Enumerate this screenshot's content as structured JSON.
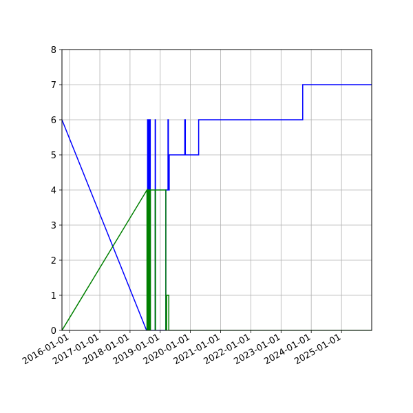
{
  "chart_data": {
    "type": "line",
    "title": "",
    "xlabel": "",
    "ylabel": "",
    "x_axis": {
      "scale": "date",
      "range": [
        "2015-10-01",
        "2026-01-01"
      ],
      "ticks": [
        "2016-01-01",
        "2017-01-01",
        "2018-01-01",
        "2019-01-01",
        "2020-01-01",
        "2021-01-01",
        "2022-01-01",
        "2023-01-01",
        "2024-01-01",
        "2025-01-01"
      ]
    },
    "y_axis": {
      "range": [
        0,
        8
      ],
      "ticks": [
        "0",
        "1",
        "2",
        "3",
        "4",
        "5",
        "6",
        "7",
        "8"
      ]
    },
    "grid": true,
    "legend": "none",
    "series": [
      {
        "color": "#0000ff",
        "points": [
          [
            "2015-10-01",
            6
          ],
          [
            "2018-07-20",
            0
          ],
          [
            "2018-08-01",
            0
          ],
          [
            "2018-08-01",
            6
          ],
          [
            "2018-08-08",
            6
          ],
          [
            "2018-08-08",
            0
          ],
          [
            "2018-08-12",
            0
          ],
          [
            "2018-08-12",
            6
          ],
          [
            "2018-08-20",
            6
          ],
          [
            "2018-08-20",
            0
          ],
          [
            "2018-08-26",
            0
          ],
          [
            "2018-08-26",
            6
          ],
          [
            "2018-09-03",
            6
          ],
          [
            "2018-09-03",
            0
          ],
          [
            "2018-11-01",
            0
          ],
          [
            "2018-11-01",
            6
          ],
          [
            "2018-11-05",
            6
          ],
          [
            "2018-11-05",
            0
          ],
          [
            "2019-03-10",
            0
          ],
          [
            "2019-03-10",
            4
          ],
          [
            "2019-04-05",
            4
          ],
          [
            "2019-04-05",
            6
          ],
          [
            "2019-04-10",
            6
          ],
          [
            "2019-04-10",
            4
          ],
          [
            "2019-04-20",
            4
          ],
          [
            "2019-04-20",
            5
          ],
          [
            "2019-10-25",
            5
          ],
          [
            "2019-10-25",
            6
          ],
          [
            "2019-11-01",
            6
          ],
          [
            "2019-11-01",
            5
          ],
          [
            "2020-04-10",
            5
          ],
          [
            "2020-04-10",
            6
          ],
          [
            "2023-09-20",
            6
          ],
          [
            "2023-09-20",
            7
          ],
          [
            "2026-01-01",
            7
          ]
        ]
      },
      {
        "color": "#008000",
        "points": [
          [
            "2015-10-01",
            0
          ],
          [
            "2018-07-25",
            4
          ],
          [
            "2018-07-25",
            0
          ],
          [
            "2018-07-30",
            0
          ],
          [
            "2018-07-30",
            4
          ],
          [
            "2018-08-04",
            4
          ],
          [
            "2018-08-04",
            0
          ],
          [
            "2018-08-10",
            0
          ],
          [
            "2018-08-10",
            4
          ],
          [
            "2018-08-16",
            4
          ],
          [
            "2018-08-16",
            0
          ],
          [
            "2018-08-22",
            0
          ],
          [
            "2018-08-22",
            4
          ],
          [
            "2018-08-28",
            4
          ],
          [
            "2018-08-28",
            0
          ],
          [
            "2018-09-05",
            0
          ],
          [
            "2018-09-05",
            4
          ],
          [
            "2018-11-01",
            4
          ],
          [
            "2018-11-01",
            0
          ],
          [
            "2018-11-05",
            0
          ],
          [
            "2018-11-05",
            4
          ],
          [
            "2019-03-10",
            4
          ],
          [
            "2019-03-10",
            0
          ],
          [
            "2019-03-20",
            0
          ],
          [
            "2019-03-20",
            1
          ],
          [
            "2019-04-15",
            1
          ],
          [
            "2019-04-15",
            0
          ],
          [
            "2026-01-01",
            0
          ]
        ]
      }
    ]
  }
}
